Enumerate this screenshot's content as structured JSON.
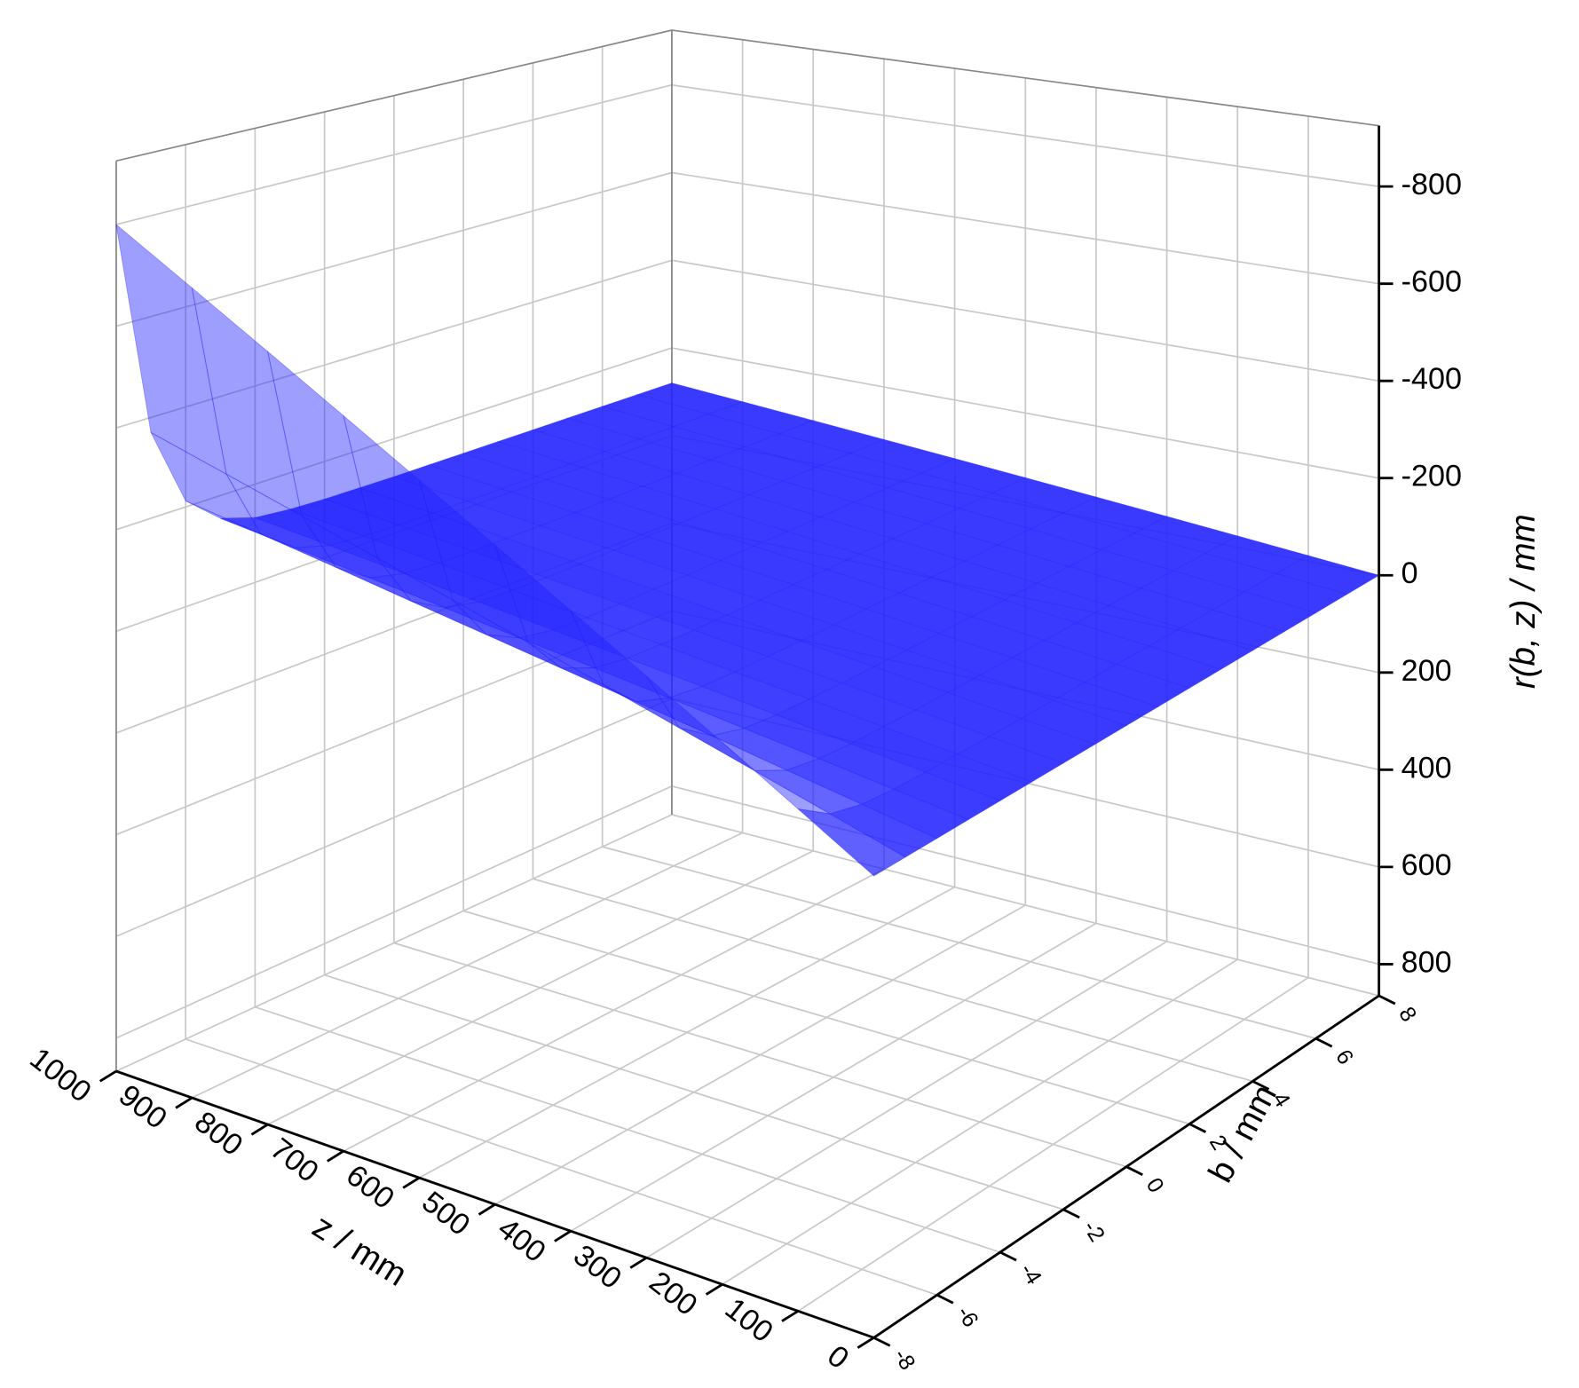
{
  "chart_data": {
    "type": "surface3d",
    "zlabel": "z / mm",
    "blabel": "b / mm",
    "rlabel": "r(b, z) / mm",
    "zlim": [
      0,
      1000
    ],
    "blim": [
      -8,
      8
    ],
    "rlim": [
      -925,
      865
    ],
    "zticks": [
      0,
      100,
      200,
      300,
      400,
      500,
      600,
      700,
      800,
      900,
      1000
    ],
    "bticks": [
      -8,
      -6,
      -4,
      -2,
      0,
      2,
      4,
      6,
      8
    ],
    "rticks": [
      -800,
      -600,
      -400,
      -200,
      0,
      200,
      400,
      600,
      800
    ],
    "color": "#1f1fff",
    "grid": true,
    "surface": {
      "z": [
        0,
        100,
        200,
        300,
        400,
        500,
        600,
        700,
        800,
        900,
        1000
      ],
      "b": [
        -8,
        -7,
        -6,
        -5,
        -4,
        -3,
        -2,
        -1,
        0,
        1,
        2,
        3,
        4,
        5,
        6,
        7,
        8
      ],
      "r": [
        [
          0,
          0,
          0,
          0,
          0,
          0,
          0,
          0,
          0,
          0,
          0,
          0,
          0,
          0,
          0,
          0,
          0
        ],
        [
          -80,
          -37,
          -21,
          -15,
          -13,
          -13,
          -12,
          -12,
          -12,
          -12,
          -12,
          -12,
          -12,
          -12,
          -12,
          -12,
          -12
        ],
        [
          -160,
          -74,
          -42,
          -31,
          -26,
          -25,
          -24,
          -24,
          -24,
          -24,
          -24,
          -24,
          -24,
          -24,
          -24,
          -24,
          -24
        ],
        [
          -240,
          -111,
          -64,
          -46,
          -40,
          -38,
          -37,
          -36,
          -36,
          -36,
          -36,
          -36,
          -36,
          -36,
          -36,
          -36,
          -36
        ],
        [
          -320,
          -148,
          -85,
          -62,
          -53,
          -50,
          -49,
          -48,
          -48,
          -48,
          -48,
          -48,
          -48,
          -48,
          -48,
          -48,
          -48
        ],
        [
          -400,
          -185,
          -106,
          -77,
          -66,
          -63,
          -61,
          -61,
          -60,
          -60,
          -60,
          -60,
          -60,
          -60,
          -60,
          -60,
          -60
        ],
        [
          -480,
          -222,
          -127,
          -92,
          -79,
          -75,
          -73,
          -73,
          -72,
          -72,
          -72,
          -72,
          -72,
          -72,
          -72,
          -72,
          -72
        ],
        [
          -560,
          -259,
          -148,
          -108,
          -92,
          -88,
          -85,
          -85,
          -84,
          -84,
          -84,
          -84,
          -84,
          -84,
          -84,
          -84,
          -84
        ],
        [
          -640,
          -296,
          -170,
          -123,
          -106,
          -100,
          -98,
          -97,
          -96,
          -96,
          -96,
          -96,
          -96,
          -96,
          -96,
          -96,
          -96
        ],
        [
          -720,
          -333,
          -191,
          -139,
          -119,
          -113,
          -110,
          -109,
          -108,
          -108,
          -108,
          -108,
          -108,
          -108,
          -108,
          -108,
          -108
        ],
        [
          -800,
          -370,
          -212,
          -154,
          -132,
          -125,
          -122,
          -121,
          -120,
          -120,
          -120,
          -120,
          -120,
          -120,
          -120,
          -120,
          -120
        ]
      ]
    }
  }
}
